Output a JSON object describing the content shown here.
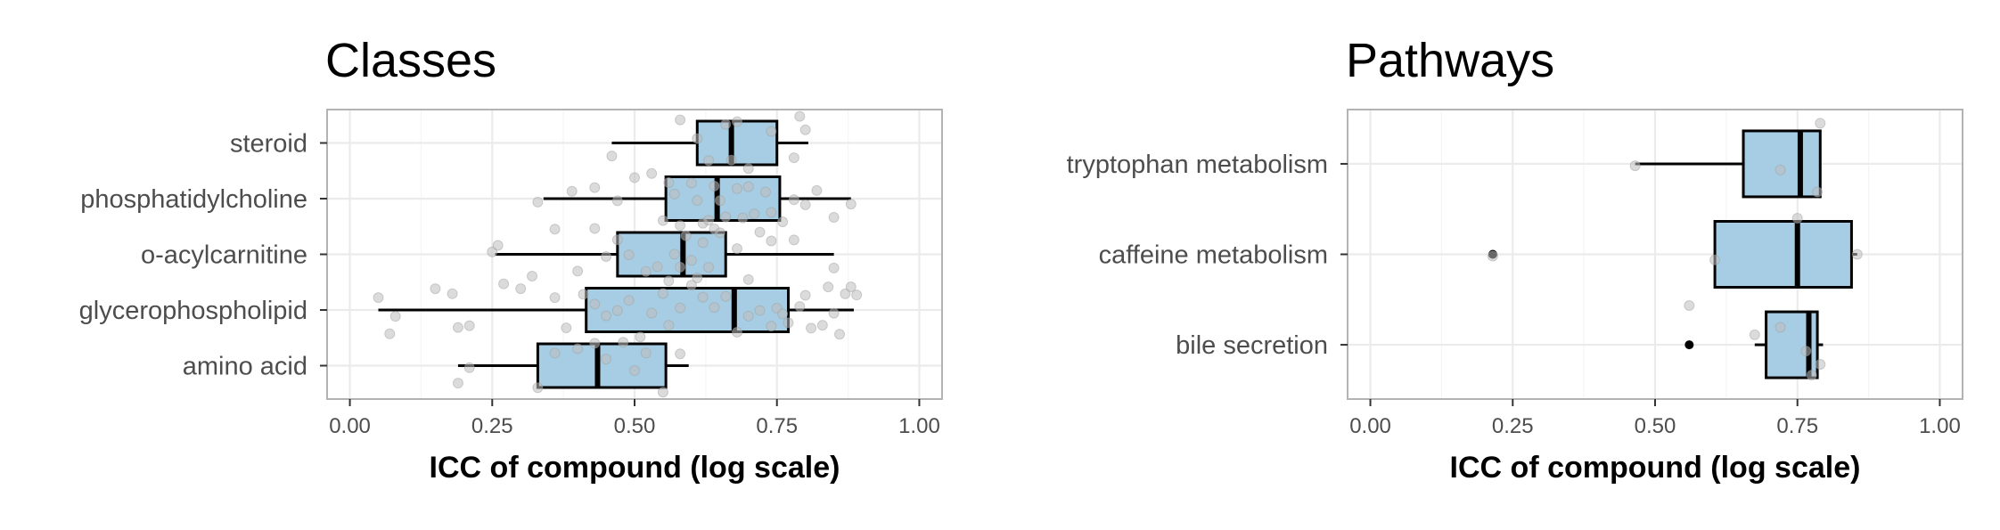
{
  "colors": {
    "box_fill": "#a6cde3",
    "box_stroke": "#000000",
    "jitter_point": "#bdbdbd",
    "outlier": "#000000",
    "grid": "#ebebeb",
    "panel_border": "#b3b3b3"
  },
  "chart_data": [
    {
      "type": "box",
      "orientation": "horizontal",
      "title": "Classes",
      "xlabel": "ICC of compound (log scale)",
      "ylabel": "",
      "xlim": [
        -0.04,
        1.04
      ],
      "x_ticks": [
        0,
        0.25,
        0.5,
        0.75,
        1
      ],
      "x_tick_labels": [
        "0.00",
        "0.25",
        "0.50",
        "0.75",
        "1.00"
      ],
      "grid": true,
      "legend": "none",
      "categories": [
        "steroid",
        "phosphatidylcholine",
        "o-acylcarnitine",
        "glycerophospholipid",
        "amino acid"
      ],
      "boxes": [
        {
          "category": "steroid",
          "whisker_low": 0.46,
          "q1": 0.61,
          "median": 0.67,
          "q3": 0.75,
          "whisker_high": 0.805,
          "outliers": [],
          "points": [
            0.46,
            0.58,
            0.61,
            0.63,
            0.66,
            0.67,
            0.68,
            0.7,
            0.74,
            0.78,
            0.79,
            0.8
          ]
        },
        {
          "category": "phosphatidylcholine",
          "whisker_low": 0.34,
          "q1": 0.555,
          "median": 0.645,
          "q3": 0.755,
          "whisker_high": 0.88,
          "outliers": [],
          "points": [
            0.33,
            0.39,
            0.43,
            0.47,
            0.5,
            0.53,
            0.55,
            0.56,
            0.57,
            0.58,
            0.6,
            0.61,
            0.62,
            0.63,
            0.64,
            0.65,
            0.66,
            0.68,
            0.69,
            0.7,
            0.71,
            0.73,
            0.74,
            0.76,
            0.78,
            0.8,
            0.82,
            0.85,
            0.88
          ]
        },
        {
          "category": "o-acylcarnitine",
          "whisker_low": 0.255,
          "q1": 0.47,
          "median": 0.585,
          "q3": 0.66,
          "whisker_high": 0.85,
          "outliers": [],
          "points": [
            0.25,
            0.26,
            0.32,
            0.36,
            0.4,
            0.43,
            0.45,
            0.47,
            0.49,
            0.52,
            0.54,
            0.56,
            0.57,
            0.58,
            0.59,
            0.6,
            0.61,
            0.62,
            0.63,
            0.64,
            0.65,
            0.68,
            0.7,
            0.72,
            0.74,
            0.78,
            0.85
          ]
        },
        {
          "category": "glycerophospholipid",
          "whisker_low": 0.05,
          "q1": 0.415,
          "median": 0.675,
          "q3": 0.77,
          "whisker_high": 0.885,
          "outliers": [],
          "points": [
            0.05,
            0.07,
            0.08,
            0.15,
            0.18,
            0.19,
            0.21,
            0.27,
            0.3,
            0.36,
            0.38,
            0.41,
            0.43,
            0.45,
            0.47,
            0.49,
            0.51,
            0.53,
            0.55,
            0.56,
            0.58,
            0.6,
            0.62,
            0.64,
            0.66,
            0.68,
            0.7,
            0.72,
            0.74,
            0.75,
            0.76,
            0.77,
            0.79,
            0.8,
            0.81,
            0.83,
            0.84,
            0.85,
            0.86,
            0.87,
            0.88,
            0.89
          ]
        },
        {
          "category": "amino acid",
          "whisker_low": 0.19,
          "q1": 0.33,
          "median": 0.435,
          "q3": 0.555,
          "whisker_high": 0.595,
          "outliers": [],
          "points": [
            0.19,
            0.21,
            0.33,
            0.36,
            0.4,
            0.43,
            0.45,
            0.48,
            0.5,
            0.52,
            0.55,
            0.58
          ]
        }
      ]
    },
    {
      "type": "box",
      "orientation": "horizontal",
      "title": "Pathways",
      "xlabel": "ICC of compound (log scale)",
      "ylabel": "",
      "xlim": [
        -0.04,
        1.04
      ],
      "x_ticks": [
        0,
        0.25,
        0.5,
        0.75,
        1
      ],
      "x_tick_labels": [
        "0.00",
        "0.25",
        "0.50",
        "0.75",
        "1.00"
      ],
      "grid": true,
      "legend": "none",
      "categories": [
        "tryptophan metabolism",
        "caffeine metabolism",
        "bile secretion"
      ],
      "boxes": [
        {
          "category": "tryptophan metabolism",
          "whisker_low": 0.465,
          "q1": 0.655,
          "median": 0.755,
          "q3": 0.79,
          "whisker_high": 0.79,
          "outliers": [],
          "points": [
            0.465,
            0.72,
            0.785,
            0.79
          ]
        },
        {
          "category": "caffeine metabolism",
          "whisker_low": 0.605,
          "q1": 0.605,
          "median": 0.75,
          "q3": 0.845,
          "whisker_high": 0.855,
          "outliers": [
            0.215
          ],
          "points": [
            0.215,
            0.605,
            0.75,
            0.855
          ]
        },
        {
          "category": "bile secretion",
          "whisker_low": 0.675,
          "q1": 0.695,
          "median": 0.77,
          "q3": 0.785,
          "whisker_high": 0.795,
          "outliers": [
            0.56
          ],
          "points": [
            0.56,
            0.675,
            0.72,
            0.765,
            0.775,
            0.79
          ]
        }
      ]
    }
  ]
}
